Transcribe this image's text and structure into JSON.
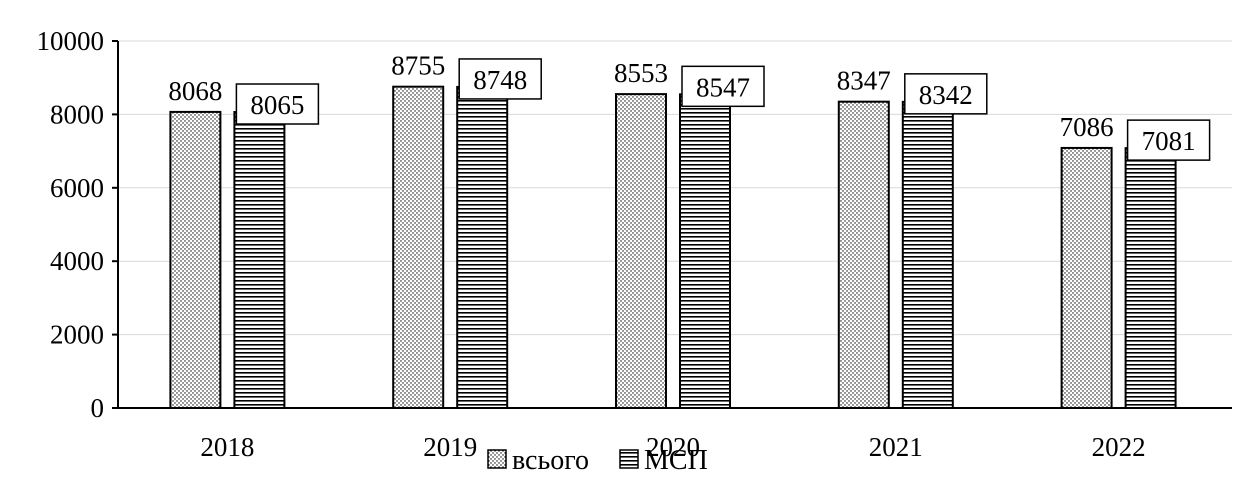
{
  "chart_data": {
    "type": "bar",
    "categories": [
      "2018",
      "2019",
      "2020",
      "2021",
      "2022"
    ],
    "series": [
      {
        "name": "всього",
        "values": [
          8068,
          8755,
          8553,
          8347,
          7086
        ],
        "pattern": "dots"
      },
      {
        "name": "МСП",
        "values": [
          8065,
          8748,
          8547,
          8342,
          7081
        ],
        "pattern": "horizontal-lines"
      }
    ],
    "ylim": [
      0,
      10000
    ],
    "yticks": [
      0,
      2000,
      4000,
      6000,
      8000,
      10000
    ],
    "legend_position": "bottom-center",
    "grid": true,
    "colors": {
      "bar_fill": "#ffffff",
      "bar_stroke": "#000000",
      "grid": "#d9d9d9",
      "axis": "#000000"
    }
  }
}
